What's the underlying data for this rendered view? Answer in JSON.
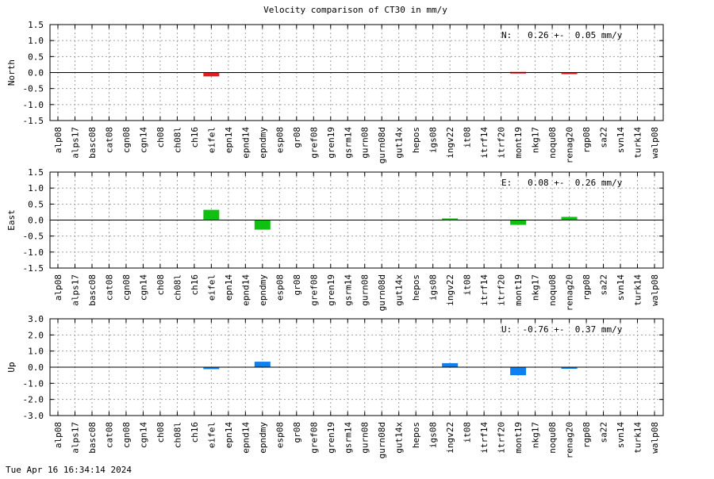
{
  "chart_data": {
    "type": "bar",
    "title": "Velocity comparison of CT30 in mm/y",
    "categories": [
      "alp08",
      "alps17",
      "basc08",
      "cat08",
      "cgn08",
      "cgn14",
      "ch08",
      "ch08l",
      "ch16",
      "eifel",
      "epn14",
      "epnd14",
      "epndmy",
      "esp08",
      "gr08",
      "gref08",
      "gren19",
      "gsrm14",
      "gurn08",
      "gurn08d",
      "gut14x",
      "hepos",
      "igs08",
      "ingv22",
      "it08",
      "itrf14",
      "itrf20",
      "mont19",
      "nkg17",
      "noqu08",
      "renag20",
      "rgp08",
      "sa22",
      "svn14",
      "turk14",
      "walp08"
    ],
    "panels": [
      {
        "ylabel": "North",
        "ylim": [
          -1.5,
          1.5
        ],
        "yticks": [
          "1.5",
          "1.0",
          "0.5",
          "0.0",
          "-0.5",
          "-1.0",
          "-1.5"
        ],
        "tick_values": [
          1.5,
          1.0,
          0.5,
          0.0,
          -0.5,
          -1.0,
          -1.5
        ],
        "color": "#e02020",
        "stat_text": "N:   0.26 +-  0.05 mm/y",
        "values": [
          0,
          0,
          0,
          0,
          0,
          0,
          0,
          0,
          0,
          -0.12,
          0,
          0,
          0,
          0,
          0,
          0,
          0,
          0,
          0,
          0,
          0,
          0,
          0,
          0,
          0,
          0,
          0,
          0.02,
          0,
          0,
          -0.05,
          0,
          0,
          0,
          0,
          0
        ],
        "grid": true
      },
      {
        "ylabel": "East",
        "ylim": [
          -1.5,
          1.5
        ],
        "yticks": [
          "1.5",
          "1.0",
          "0.5",
          "0.0",
          "-0.5",
          "-1.0",
          "-1.5"
        ],
        "tick_values": [
          1.5,
          1.0,
          0.5,
          0.0,
          -0.5,
          -1.0,
          -1.5
        ],
        "color": "#10c010",
        "stat_text": "E:   0.08 +-  0.26 mm/y",
        "values": [
          0,
          0,
          0,
          0,
          0,
          0,
          0,
          0,
          0,
          0.32,
          0,
          0,
          -0.3,
          0,
          0,
          0,
          0,
          0,
          0,
          0,
          0,
          0,
          0,
          0.05,
          0,
          0,
          0,
          -0.15,
          0,
          0,
          0.1,
          0,
          0,
          0,
          0,
          0
        ],
        "grid": true
      },
      {
        "ylabel": "Up",
        "ylim": [
          -3.0,
          3.0
        ],
        "yticks": [
          "3.0",
          "2.0",
          "1.0",
          "0.0",
          "-1.0",
          "-2.0",
          "-3.0"
        ],
        "tick_values": [
          3.0,
          2.0,
          1.0,
          0.0,
          -1.0,
          -2.0,
          -3.0
        ],
        "color": "#1080f0",
        "stat_text": "U:  -0.76 +-  0.37 mm/y",
        "values": [
          0,
          0,
          0,
          0,
          0,
          0,
          0,
          0,
          0,
          -0.12,
          0,
          0,
          0.34,
          0,
          0,
          0,
          0,
          0,
          0,
          0,
          0,
          0,
          0,
          0.25,
          0,
          0,
          0,
          -0.5,
          0,
          0,
          -0.06,
          0,
          0,
          0,
          0,
          0
        ],
        "grid": true
      }
    ]
  },
  "footer": {
    "timestamp": "Tue Apr 16 16:34:14 2024"
  }
}
